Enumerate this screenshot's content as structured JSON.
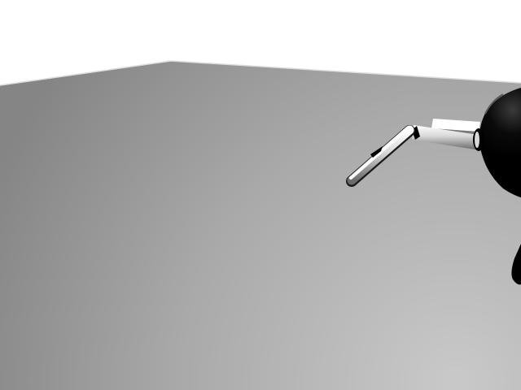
{
  "scene": {
    "background_color": "#ffffff",
    "floor": {
      "shade_far_left": "#8a8a8a",
      "shade_near_right": "#c8c8c8",
      "edge_highlight": "#dcdcdc"
    },
    "robot": {
      "body_color": "#000000",
      "link_highlight": "#ffffff",
      "link_mid": "#bdbdbd",
      "link_shadow": "#2a2a2a"
    }
  }
}
